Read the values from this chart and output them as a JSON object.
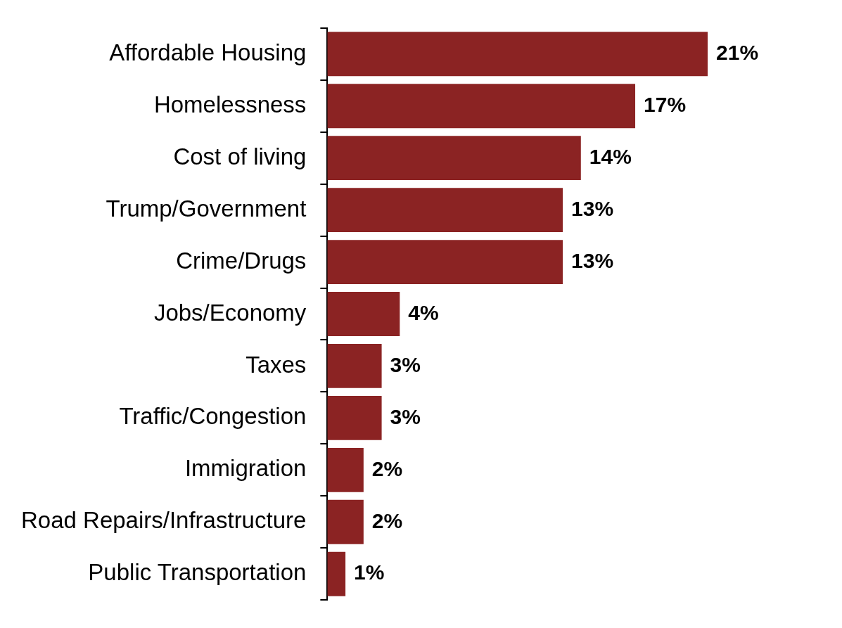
{
  "chart_data": {
    "type": "bar",
    "orientation": "horizontal",
    "categories": [
      "Affordable Housing",
      "Homelessness",
      "Cost of living",
      "Trump/Government",
      "Crime/Drugs",
      "Jobs/Economy",
      "Taxes",
      "Traffic/Congestion",
      "Immigration",
      "Road Repairs/Infrastructure",
      "Public Transportation"
    ],
    "values": [
      21,
      17,
      14,
      13,
      13,
      4,
      3,
      3,
      2,
      2,
      1
    ],
    "value_labels": [
      "21%",
      "17%",
      "14%",
      "13%",
      "13%",
      "4%",
      "3%",
      "3%",
      "2%",
      "2%",
      "1%"
    ],
    "color": "#8b2323",
    "tick_labels": "y",
    "legend": false
  }
}
